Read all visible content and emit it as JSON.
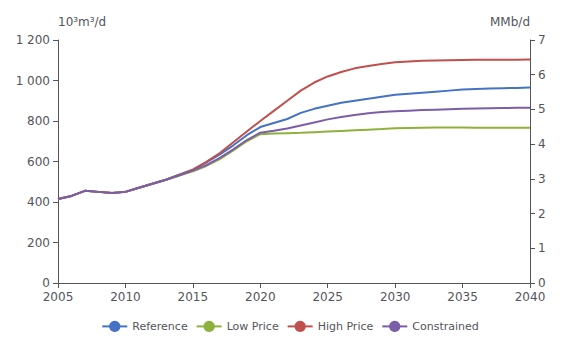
{
  "chart_data": {
    "type": "line",
    "x": [
      2005,
      2006,
      2007,
      2008,
      2009,
      2010,
      2011,
      2012,
      2013,
      2014,
      2015,
      2016,
      2017,
      2018,
      2019,
      2020,
      2021,
      2022,
      2023,
      2024,
      2025,
      2026,
      2027,
      2028,
      2029,
      2030,
      2031,
      2032,
      2033,
      2034,
      2035,
      2036,
      2037,
      2038,
      2039,
      2040
    ],
    "series": [
      {
        "name": "Reference",
        "color": "#4472C4",
        "values": [
          415,
          430,
          455,
          450,
          445,
          450,
          470,
          490,
          510,
          535,
          560,
          595,
          635,
          680,
          730,
          770,
          790,
          810,
          840,
          860,
          875,
          890,
          900,
          910,
          920,
          930,
          935,
          940,
          945,
          950,
          955,
          958,
          960,
          962,
          963,
          965
        ]
      },
      {
        "name": "Low Price",
        "color": "#8DB13C",
        "values": [
          415,
          430,
          455,
          450,
          445,
          450,
          470,
          490,
          510,
          530,
          552,
          578,
          612,
          655,
          700,
          735,
          738,
          740,
          742,
          745,
          748,
          751,
          754,
          757,
          760,
          764,
          766,
          767,
          768,
          768,
          768,
          767,
          767,
          767,
          767,
          767
        ]
      },
      {
        "name": "High Price",
        "color": "#C0504D",
        "values": [
          415,
          430,
          455,
          450,
          445,
          450,
          470,
          490,
          510,
          535,
          560,
          598,
          642,
          695,
          748,
          800,
          850,
          900,
          950,
          990,
          1020,
          1042,
          1060,
          1072,
          1082,
          1090,
          1094,
          1097,
          1099,
          1100,
          1101,
          1102,
          1103,
          1103,
          1103,
          1104
        ]
      },
      {
        "name": "Constrained",
        "color": "#7B5EA7",
        "values": [
          415,
          430,
          455,
          450,
          445,
          450,
          470,
          490,
          510,
          532,
          555,
          582,
          618,
          660,
          706,
          742,
          752,
          763,
          778,
          793,
          808,
          820,
          830,
          838,
          844,
          848,
          851,
          854,
          856,
          858,
          860,
          862,
          863,
          864,
          865,
          866
        ]
      }
    ],
    "xlim": [
      2005,
      2040
    ],
    "xticks": [
      2005,
      2010,
      2015,
      2020,
      2025,
      2030,
      2035,
      2040
    ],
    "ylim": [
      0,
      1200
    ],
    "yticks": [
      0,
      200,
      400,
      600,
      800,
      {
        "value": 1000,
        "label": "1 000"
      },
      {
        "value": 1200,
        "label": "1 200"
      }
    ],
    "ylabel": "10³m³/d",
    "y2lim": [
      0,
      7
    ],
    "y2ticks": [
      0,
      1,
      2,
      3,
      4,
      5,
      6,
      7
    ],
    "y2label": "MMb/d",
    "grid": false,
    "legend": "bottom"
  }
}
